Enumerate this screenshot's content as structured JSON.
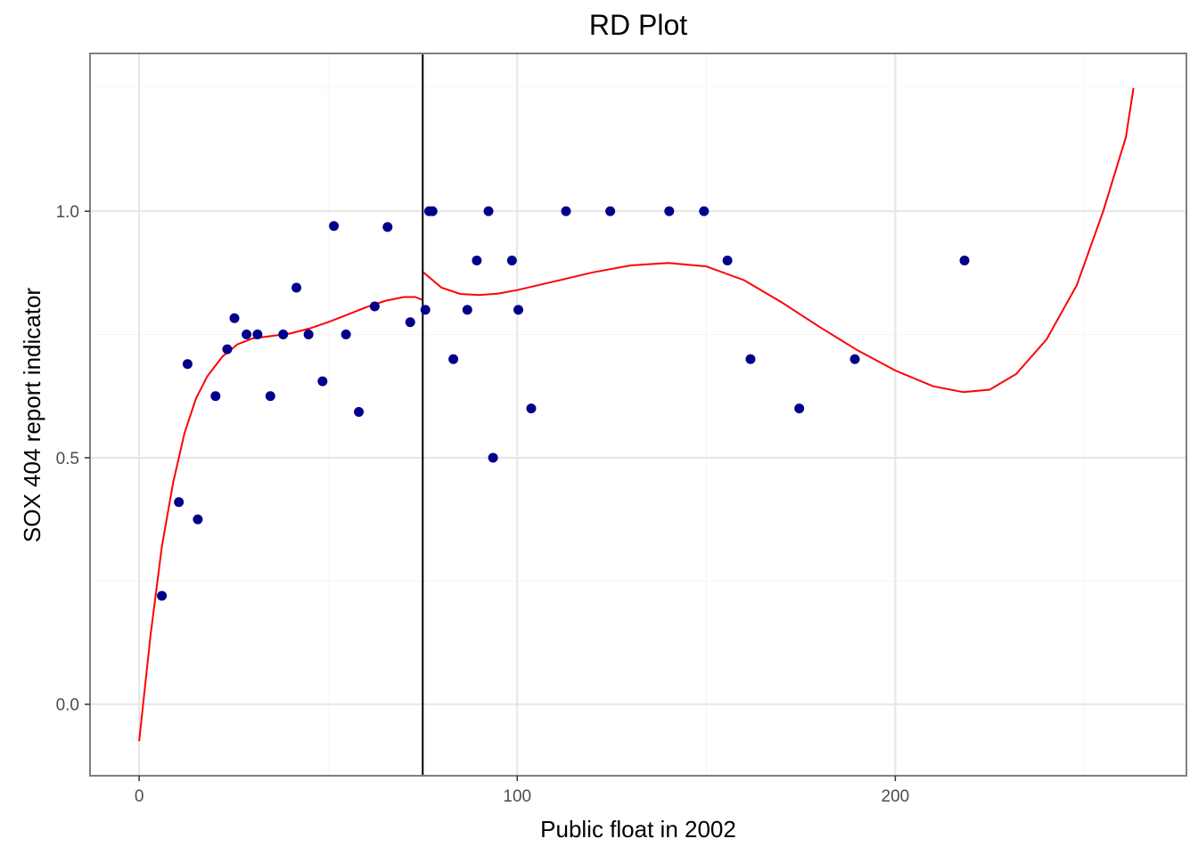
{
  "chart_data": {
    "type": "scatter",
    "title": "RD Plot",
    "xlabel": "Public float in 2002",
    "ylabel": "SOX 404 report indicator",
    "xlim": [
      -13,
      277
    ],
    "ylim": [
      -0.145,
      1.32
    ],
    "x_ticks": [
      0,
      100,
      200
    ],
    "x_tick_labels": [
      "0",
      "100",
      "200"
    ],
    "y_ticks": [
      0.0,
      0.5,
      1.0
    ],
    "y_tick_labels": [
      "0.0",
      "0.5",
      "1.0"
    ],
    "grid": true,
    "cutoff_x": 75,
    "colors": {
      "points": "#00008b",
      "fit": "#ff0000",
      "cutoff": "#000000",
      "grid_major": "#e5e5e5",
      "grid_minor": "#f5f5f5",
      "panel_border": "#7f7f7f"
    },
    "points": [
      {
        "x": 6,
        "y": 0.22
      },
      {
        "x": 10.5,
        "y": 0.41
      },
      {
        "x": 12.8,
        "y": 0.69
      },
      {
        "x": 15.5,
        "y": 0.375
      },
      {
        "x": 20.2,
        "y": 0.625
      },
      {
        "x": 23.3,
        "y": 0.72
      },
      {
        "x": 25.2,
        "y": 0.783
      },
      {
        "x": 28.4,
        "y": 0.75
      },
      {
        "x": 31.3,
        "y": 0.75
      },
      {
        "x": 34.7,
        "y": 0.625
      },
      {
        "x": 38.1,
        "y": 0.75
      },
      {
        "x": 41.6,
        "y": 0.845
      },
      {
        "x": 44.8,
        "y": 0.75
      },
      {
        "x": 48.5,
        "y": 0.655
      },
      {
        "x": 51.5,
        "y": 0.97
      },
      {
        "x": 54.7,
        "y": 0.75
      },
      {
        "x": 58.1,
        "y": 0.593
      },
      {
        "x": 62.3,
        "y": 0.807
      },
      {
        "x": 65.7,
        "y": 0.968
      },
      {
        "x": 71.7,
        "y": 0.775
      },
      {
        "x": 75.7,
        "y": 0.8
      },
      {
        "x": 76.7,
        "y": 1.0
      },
      {
        "x": 77.6,
        "y": 1.0
      },
      {
        "x": 83.1,
        "y": 0.7
      },
      {
        "x": 86.8,
        "y": 0.8
      },
      {
        "x": 89.3,
        "y": 0.9
      },
      {
        "x": 92.4,
        "y": 1.0
      },
      {
        "x": 93.6,
        "y": 0.5
      },
      {
        "x": 98.6,
        "y": 0.9
      },
      {
        "x": 100.3,
        "y": 0.8
      },
      {
        "x": 103.7,
        "y": 0.6
      },
      {
        "x": 112.9,
        "y": 1.0
      },
      {
        "x": 124.6,
        "y": 1.0
      },
      {
        "x": 140.2,
        "y": 1.0
      },
      {
        "x": 149.4,
        "y": 1.0
      },
      {
        "x": 155.6,
        "y": 0.9
      },
      {
        "x": 161.7,
        "y": 0.7
      },
      {
        "x": 174.6,
        "y": 0.6
      },
      {
        "x": 189.3,
        "y": 0.7
      },
      {
        "x": 218.3,
        "y": 0.9
      }
    ],
    "fit_left": [
      [
        0,
        -0.075
      ],
      [
        3,
        0.14
      ],
      [
        6,
        0.32
      ],
      [
        9,
        0.45
      ],
      [
        12,
        0.55
      ],
      [
        15,
        0.62
      ],
      [
        18,
        0.665
      ],
      [
        22,
        0.705
      ],
      [
        26,
        0.73
      ],
      [
        30,
        0.742
      ],
      [
        35,
        0.747
      ],
      [
        40,
        0.752
      ],
      [
        45,
        0.762
      ],
      [
        50,
        0.775
      ],
      [
        55,
        0.79
      ],
      [
        60,
        0.805
      ],
      [
        65,
        0.818
      ],
      [
        70,
        0.826
      ],
      [
        73,
        0.826
      ],
      [
        75,
        0.82
      ]
    ],
    "fit_right": [
      [
        75,
        0.877
      ],
      [
        80,
        0.845
      ],
      [
        85,
        0.832
      ],
      [
        90,
        0.83
      ],
      [
        95,
        0.833
      ],
      [
        100,
        0.84
      ],
      [
        110,
        0.858
      ],
      [
        120,
        0.876
      ],
      [
        130,
        0.89
      ],
      [
        140,
        0.895
      ],
      [
        150,
        0.888
      ],
      [
        160,
        0.86
      ],
      [
        170,
        0.815
      ],
      [
        180,
        0.765
      ],
      [
        190,
        0.718
      ],
      [
        200,
        0.677
      ],
      [
        210,
        0.645
      ],
      [
        218,
        0.633
      ],
      [
        225,
        0.638
      ],
      [
        232,
        0.67
      ],
      [
        240,
        0.74
      ],
      [
        248,
        0.85
      ],
      [
        255,
        1.0
      ],
      [
        261,
        1.15
      ],
      [
        263,
        1.25
      ]
    ]
  }
}
